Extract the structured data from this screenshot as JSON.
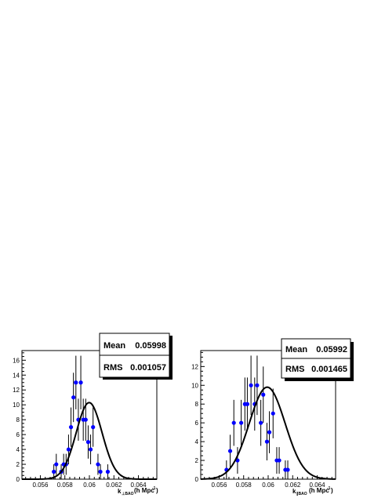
{
  "chart_data": [
    {
      "type": "scatter",
      "title": "",
      "xlabel": "k",
      "xlabel_sub": "⊥BAO",
      "xlabel_units": "(h Mpc",
      "xlabel_units_sup": "-1",
      "xlabel_units_close": ")",
      "xlim": [
        0.0545,
        0.0655
      ],
      "ylim": [
        0,
        17.3
      ],
      "xticks": [
        0.056,
        0.058,
        0.06,
        0.062,
        0.064
      ],
      "xtick_labels": [
        "0.056",
        "0.058",
        "0.06",
        "0.062",
        "0.064"
      ],
      "yticks": [
        0,
        2,
        4,
        6,
        8,
        10,
        12,
        14,
        16
      ],
      "ytick_labels": [
        "0",
        "2",
        "4",
        "6",
        "8",
        "10",
        "12",
        "14",
        "16"
      ],
      "marker_color": "#0000ff",
      "fit": {
        "mean": 0.05998,
        "sigma": 0.001057,
        "amplitude": 10.3
      },
      "stats": {
        "mean_label": "Mean",
        "mean_value": "0.05998",
        "rms_label": "RMS",
        "rms_value": "0.001057"
      },
      "points": [
        {
          "x": 0.0571,
          "y": 1
        },
        {
          "x": 0.0573,
          "y": 2
        },
        {
          "x": 0.0577,
          "y": 1
        },
        {
          "x": 0.0579,
          "y": 2
        },
        {
          "x": 0.0581,
          "y": 2
        },
        {
          "x": 0.0583,
          "y": 4
        },
        {
          "x": 0.0585,
          "y": 7
        },
        {
          "x": 0.0587,
          "y": 11
        },
        {
          "x": 0.0589,
          "y": 13
        },
        {
          "x": 0.0591,
          "y": 8
        },
        {
          "x": 0.0593,
          "y": 13
        },
        {
          "x": 0.0595,
          "y": 8
        },
        {
          "x": 0.0597,
          "y": 8
        },
        {
          "x": 0.0599,
          "y": 5
        },
        {
          "x": 0.0601,
          "y": 4
        },
        {
          "x": 0.0603,
          "y": 7
        },
        {
          "x": 0.0607,
          "y": 2
        },
        {
          "x": 0.0609,
          "y": 1
        },
        {
          "x": 0.0615,
          "y": 1
        }
      ]
    },
    {
      "type": "scatter",
      "title": "",
      "xlabel": "k",
      "xlabel_sub": "∥BAO",
      "xlabel_units": "(h Mpc",
      "xlabel_units_sup": "-1",
      "xlabel_units_close": ")",
      "xlim": [
        0.0545,
        0.0655
      ],
      "ylim": [
        0,
        13.7
      ],
      "xticks": [
        0.056,
        0.058,
        0.06,
        0.062,
        0.064
      ],
      "xtick_labels": [
        "0.056",
        "0.058",
        "0.06",
        "0.062",
        "0.064"
      ],
      "yticks": [
        0,
        2,
        4,
        6,
        8,
        10,
        12
      ],
      "ytick_labels": [
        "0",
        "2",
        "4",
        "6",
        "8",
        "10",
        "12"
      ],
      "marker_color": "#0000ff",
      "fit": {
        "mean": 0.05992,
        "sigma": 0.001465,
        "amplitude": 9.8
      },
      "stats": {
        "mean_label": "Mean",
        "mean_value": "0.05992",
        "rms_label": "RMS",
        "rms_value": "0.001465"
      },
      "points": [
        {
          "x": 0.0566,
          "y": 1
        },
        {
          "x": 0.0569,
          "y": 3
        },
        {
          "x": 0.0572,
          "y": 6
        },
        {
          "x": 0.0575,
          "y": 2
        },
        {
          "x": 0.0578,
          "y": 6
        },
        {
          "x": 0.0581,
          "y": 8
        },
        {
          "x": 0.0583,
          "y": 8
        },
        {
          "x": 0.0586,
          "y": 10
        },
        {
          "x": 0.0589,
          "y": 8
        },
        {
          "x": 0.0591,
          "y": 10
        },
        {
          "x": 0.0594,
          "y": 6
        },
        {
          "x": 0.0596,
          "y": 9
        },
        {
          "x": 0.0599,
          "y": 4
        },
        {
          "x": 0.0601,
          "y": 5
        },
        {
          "x": 0.0604,
          "y": 7
        },
        {
          "x": 0.0607,
          "y": 2
        },
        {
          "x": 0.0609,
          "y": 2
        },
        {
          "x": 0.0614,
          "y": 1
        },
        {
          "x": 0.0616,
          "y": 1
        }
      ]
    }
  ]
}
